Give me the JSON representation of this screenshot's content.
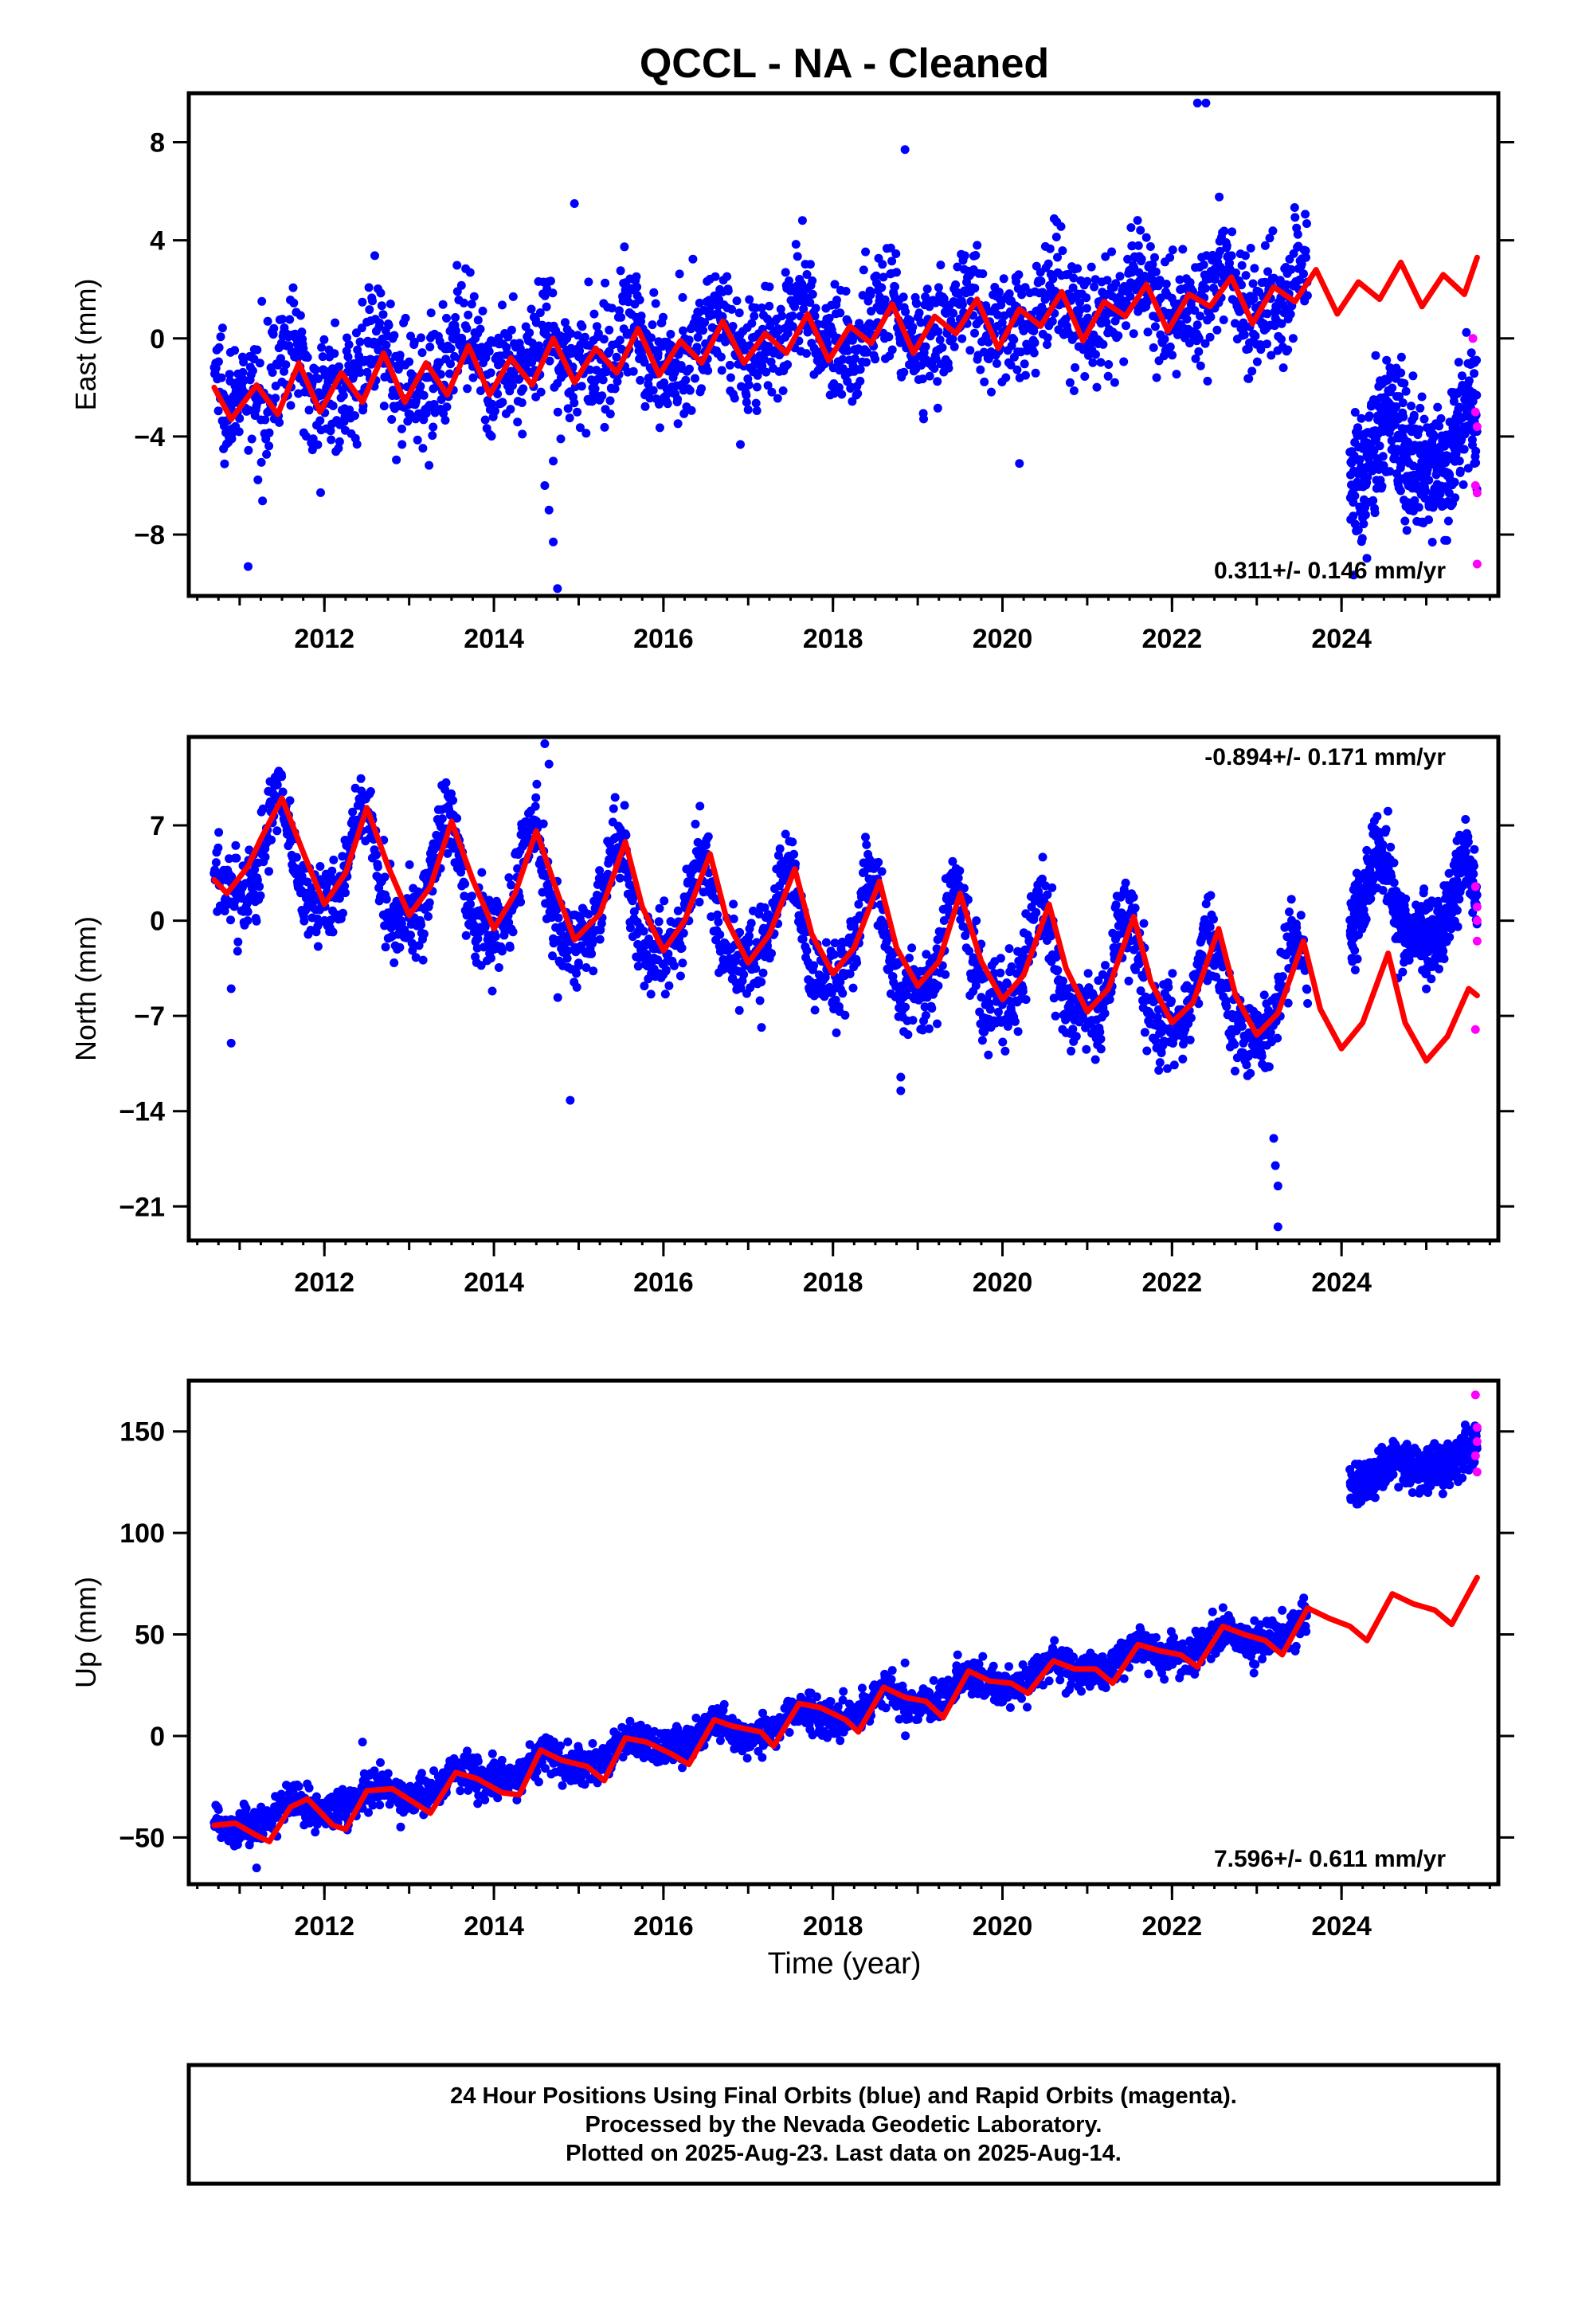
{
  "title": "QCCL  - NA - Cleaned",
  "colors": {
    "final_orbits": "#0000ff",
    "rapid_orbits": "#ff00ff",
    "model": "#ff0000",
    "frame": "#000000"
  },
  "x_axis_label": "Time (year)",
  "footer": {
    "line1": "24 Hour Positions Using Final Orbits (blue) and Rapid Orbits (magenta).",
    "line2": "Processed by the Nevada Geodetic Laboratory.",
    "line3": "Plotted on 2025-Aug-23. Last data on 2025-Aug-14."
  },
  "chart_data": [
    {
      "type": "scatter",
      "ylabel": "East (mm)",
      "rate_text": "0.311+/- 0.146 mm/yr",
      "xlim": [
        2010.4,
        2025.85
      ],
      "ylim": [
        -10.5,
        10
      ],
      "xticks": [
        2012,
        2014,
        2016,
        2018,
        2020,
        2022,
        2024
      ],
      "yticks": [
        -8,
        -4,
        0,
        4,
        8
      ],
      "yticklabels": [
        "−8",
        "−4",
        "0",
        "4",
        "8"
      ],
      "grid": false,
      "final_orbits": {
        "start": 2010.7,
        "end": 2023.6,
        "offset": -2.0,
        "trend": 0.311,
        "amplitude": 0.9,
        "phase_year": 0.6,
        "noise": 1.2,
        "count": 2200
      },
      "final_orbits_2024": {
        "start": 2024.1,
        "end": 2025.6,
        "offset": -4.8,
        "trend": 0.3,
        "amplitude": 1.3,
        "phase_year": 0.55,
        "noise": 1.3,
        "count": 500
      },
      "rapid_orbits": [
        {
          "x": 2025.55,
          "y": 0.0
        },
        {
          "x": 2025.58,
          "y": -3.0
        },
        {
          "x": 2025.6,
          "y": -3.6
        },
        {
          "x": 2025.58,
          "y": -6.0
        },
        {
          "x": 2025.6,
          "y": -6.3
        },
        {
          "x": 2025.6,
          "y": -9.2
        }
      ],
      "outliers": [
        {
          "x": 2011.1,
          "y": -9.3
        },
        {
          "x": 2014.6,
          "y": -6.0
        },
        {
          "x": 2014.65,
          "y": -7.0
        },
        {
          "x": 2014.7,
          "y": -8.3
        },
        {
          "x": 2014.75,
          "y": -10.2
        },
        {
          "x": 2014.7,
          "y": -5.0
        },
        {
          "x": 2018.85,
          "y": 7.7
        },
        {
          "x": 2020.2,
          "y": -5.1
        },
        {
          "x": 2022.3,
          "y": 9.6
        },
        {
          "x": 2022.4,
          "y": 9.6
        },
        {
          "x": 2014.95,
          "y": 5.5
        }
      ],
      "model": [
        [
          2010.7,
          -2.0
        ],
        [
          2010.9,
          -3.3
        ],
        [
          2011.2,
          -1.9
        ],
        [
          2011.45,
          -3.1
        ],
        [
          2011.7,
          -1.0
        ],
        [
          2011.95,
          -3.0
        ],
        [
          2012.2,
          -1.4
        ],
        [
          2012.45,
          -2.6
        ],
        [
          2012.7,
          -0.6
        ],
        [
          2012.95,
          -2.6
        ],
        [
          2013.2,
          -1.0
        ],
        [
          2013.45,
          -2.3
        ],
        [
          2013.7,
          -0.3
        ],
        [
          2013.95,
          -2.3
        ],
        [
          2014.2,
          -0.8
        ],
        [
          2014.45,
          -1.9
        ],
        [
          2014.7,
          0.0
        ],
        [
          2014.95,
          -1.8
        ],
        [
          2015.2,
          -0.4
        ],
        [
          2015.45,
          -1.4
        ],
        [
          2015.7,
          0.4
        ],
        [
          2015.95,
          -1.5
        ],
        [
          2016.2,
          -0.1
        ],
        [
          2016.45,
          -1.0
        ],
        [
          2016.7,
          0.7
        ],
        [
          2016.95,
          -1.0
        ],
        [
          2017.2,
          0.2
        ],
        [
          2017.45,
          -0.6
        ],
        [
          2017.7,
          1.0
        ],
        [
          2017.95,
          -0.9
        ],
        [
          2018.2,
          0.5
        ],
        [
          2018.45,
          -0.2
        ],
        [
          2018.7,
          1.4
        ],
        [
          2018.95,
          -0.6
        ],
        [
          2019.2,
          0.9
        ],
        [
          2019.45,
          0.2
        ],
        [
          2019.7,
          1.6
        ],
        [
          2019.95,
          -0.4
        ],
        [
          2020.2,
          1.2
        ],
        [
          2020.45,
          0.5
        ],
        [
          2020.7,
          1.9
        ],
        [
          2020.95,
          -0.1
        ],
        [
          2021.2,
          1.5
        ],
        [
          2021.45,
          0.9
        ],
        [
          2021.7,
          2.2
        ],
        [
          2021.95,
          0.3
        ],
        [
          2022.2,
          1.8
        ],
        [
          2022.45,
          1.3
        ],
        [
          2022.7,
          2.5
        ],
        [
          2022.95,
          0.6
        ],
        [
          2023.2,
          2.1
        ],
        [
          2023.45,
          1.5
        ],
        [
          2023.7,
          2.8
        ],
        [
          2023.95,
          1.0
        ],
        [
          2024.2,
          2.3
        ],
        [
          2024.45,
          1.6
        ],
        [
          2024.7,
          3.1
        ],
        [
          2024.95,
          1.3
        ],
        [
          2025.2,
          2.6
        ],
        [
          2025.45,
          1.8
        ],
        [
          2025.6,
          3.3
        ]
      ]
    },
    {
      "type": "scatter",
      "ylabel": "North (mm)",
      "rate_text": "-0.894+/- 0.171 mm/yr",
      "xlim": [
        2010.4,
        2025.85
      ],
      "ylim": [
        -23.5,
        13.5
      ],
      "xticks": [
        2012,
        2014,
        2016,
        2018,
        2020,
        2022,
        2024
      ],
      "yticks": [
        -21,
        -14,
        -7,
        0,
        7
      ],
      "yticklabels": [
        "−21",
        "−14",
        "−7",
        "0",
        "7"
      ],
      "grid": false,
      "final_orbits": {
        "start": 2010.7,
        "end": 2023.6,
        "offset": 5.0,
        "trend": -0.894,
        "amplitude": 3.8,
        "phase_year": 0.45,
        "noise": 1.5,
        "count": 2200
      },
      "final_orbits_2024": {
        "start": 2024.1,
        "end": 2025.6,
        "offset": 1.5,
        "trend": -0.9,
        "amplitude": 3.0,
        "phase_year": 0.45,
        "noise": 1.4,
        "count": 500
      },
      "rapid_orbits": [
        {
          "x": 2025.58,
          "y": 2.5
        },
        {
          "x": 2025.6,
          "y": 1.0
        },
        {
          "x": 2025.6,
          "y": 0.0
        },
        {
          "x": 2025.6,
          "y": -1.5
        },
        {
          "x": 2025.58,
          "y": -8.0
        }
      ],
      "outliers": [
        {
          "x": 2010.9,
          "y": -5.0
        },
        {
          "x": 2010.9,
          "y": -9.0
        },
        {
          "x": 2014.9,
          "y": -13.2
        },
        {
          "x": 2014.6,
          "y": 13.0
        },
        {
          "x": 2014.65,
          "y": 11.5
        },
        {
          "x": 2018.8,
          "y": -11.5
        },
        {
          "x": 2018.8,
          "y": -12.5
        },
        {
          "x": 2023.2,
          "y": -16.0
        },
        {
          "x": 2023.22,
          "y": -18.0
        },
        {
          "x": 2023.25,
          "y": -19.5
        },
        {
          "x": 2023.25,
          "y": -22.5
        }
      ],
      "model": [
        [
          2010.7,
          3.0
        ],
        [
          2010.85,
          2.0
        ],
        [
          2011.1,
          4.0
        ],
        [
          2011.25,
          6.0
        ],
        [
          2011.5,
          9.0
        ],
        [
          2011.75,
          5.0
        ],
        [
          2012.0,
          1.2
        ],
        [
          2012.25,
          3.5
        ],
        [
          2012.5,
          8.3
        ],
        [
          2012.75,
          4.0
        ],
        [
          2013.0,
          0.4
        ],
        [
          2013.25,
          2.5
        ],
        [
          2013.5,
          7.3
        ],
        [
          2013.75,
          3.0
        ],
        [
          2014.0,
          -0.6
        ],
        [
          2014.25,
          2.0
        ],
        [
          2014.5,
          6.6
        ],
        [
          2014.75,
          2.0
        ],
        [
          2014.95,
          -1.4
        ],
        [
          2015.25,
          0.5
        ],
        [
          2015.55,
          5.8
        ],
        [
          2015.75,
          1.0
        ],
        [
          2016.0,
          -2.2
        ],
        [
          2016.25,
          0.0
        ],
        [
          2016.55,
          4.9
        ],
        [
          2016.75,
          0.0
        ],
        [
          2017.0,
          -3.1
        ],
        [
          2017.25,
          -1.0
        ],
        [
          2017.55,
          3.8
        ],
        [
          2017.75,
          -1.0
        ],
        [
          2018.0,
          -3.9
        ],
        [
          2018.25,
          -2.0
        ],
        [
          2018.55,
          2.9
        ],
        [
          2018.75,
          -2.0
        ],
        [
          2019.0,
          -4.8
        ],
        [
          2019.25,
          -3.0
        ],
        [
          2019.5,
          2.0
        ],
        [
          2019.75,
          -3.0
        ],
        [
          2020.0,
          -5.8
        ],
        [
          2020.25,
          -4.0
        ],
        [
          2020.55,
          1.2
        ],
        [
          2020.75,
          -3.5
        ],
        [
          2021.0,
          -6.7
        ],
        [
          2021.25,
          -5.0
        ],
        [
          2021.55,
          0.3
        ],
        [
          2021.75,
          -4.5
        ],
        [
          2022.0,
          -7.5
        ],
        [
          2022.25,
          -6.0
        ],
        [
          2022.55,
          -0.6
        ],
        [
          2022.75,
          -5.5
        ],
        [
          2023.0,
          -8.4
        ],
        [
          2023.25,
          -6.8
        ],
        [
          2023.55,
          -1.5
        ],
        [
          2023.75,
          -6.5
        ],
        [
          2024.0,
          -9.4
        ],
        [
          2024.25,
          -7.5
        ],
        [
          2024.55,
          -2.4
        ],
        [
          2024.75,
          -7.5
        ],
        [
          2025.0,
          -10.3
        ],
        [
          2025.25,
          -8.5
        ],
        [
          2025.5,
          -5.0
        ],
        [
          2025.6,
          -5.5
        ]
      ]
    },
    {
      "type": "scatter",
      "ylabel": "Up (mm)",
      "rate_text": "7.596+/- 0.611 mm/yr",
      "xlim": [
        2010.4,
        2025.85
      ],
      "ylim": [
        -73,
        175
      ],
      "xticks": [
        2012,
        2014,
        2016,
        2018,
        2020,
        2022,
        2024
      ],
      "yticks": [
        -50,
        0,
        50,
        100,
        150
      ],
      "yticklabels": [
        "−50",
        "0",
        "50",
        "100",
        "150"
      ],
      "grid": false,
      "final_orbits": {
        "start": 2010.7,
        "end": 2023.6,
        "offset": -44.0,
        "trend": 7.6,
        "amplitude": 4.5,
        "phase_year": 0.6,
        "noise": 4.5,
        "count": 2200
      },
      "final_orbits_2024": {
        "start": 2024.1,
        "end": 2025.6,
        "offset": 125.0,
        "trend": 10.0,
        "amplitude": 4.0,
        "phase_year": 0.6,
        "noise": 5.0,
        "count": 500
      },
      "rapid_orbits": [
        {
          "x": 2025.58,
          "y": 168
        },
        {
          "x": 2025.6,
          "y": 152
        },
        {
          "x": 2025.6,
          "y": 145
        },
        {
          "x": 2025.58,
          "y": 138
        },
        {
          "x": 2025.6,
          "y": 130
        }
      ],
      "outliers": [
        {
          "x": 2012.45,
          "y": -3
        },
        {
          "x": 2018.85,
          "y": 36
        },
        {
          "x": 2011.2,
          "y": -65
        }
      ],
      "model": [
        [
          2010.7,
          -44
        ],
        [
          2010.95,
          -43
        ],
        [
          2011.2,
          -49
        ],
        [
          2011.35,
          -52
        ],
        [
          2011.6,
          -35
        ],
        [
          2011.8,
          -31
        ],
        [
          2012.1,
          -44
        ],
        [
          2012.25,
          -46
        ],
        [
          2012.5,
          -27
        ],
        [
          2012.8,
          -26
        ],
        [
          2013.1,
          -34
        ],
        [
          2013.25,
          -38
        ],
        [
          2013.55,
          -18
        ],
        [
          2013.8,
          -21
        ],
        [
          2014.1,
          -28
        ],
        [
          2014.3,
          -29
        ],
        [
          2014.55,
          -7
        ],
        [
          2014.8,
          -12
        ],
        [
          2015.1,
          -15
        ],
        [
          2015.3,
          -22
        ],
        [
          2015.55,
          -1
        ],
        [
          2015.8,
          -3
        ],
        [
          2016.1,
          -9
        ],
        [
          2016.3,
          -14
        ],
        [
          2016.6,
          8
        ],
        [
          2016.8,
          5
        ],
        [
          2017.15,
          2
        ],
        [
          2017.3,
          -5
        ],
        [
          2017.6,
          16
        ],
        [
          2017.85,
          14
        ],
        [
          2018.15,
          8
        ],
        [
          2018.3,
          2
        ],
        [
          2018.6,
          24
        ],
        [
          2018.85,
          19
        ],
        [
          2019.1,
          17
        ],
        [
          2019.3,
          9
        ],
        [
          2019.6,
          32
        ],
        [
          2019.85,
          27
        ],
        [
          2020.1,
          26
        ],
        [
          2020.3,
          21
        ],
        [
          2020.6,
          37
        ],
        [
          2020.85,
          33
        ],
        [
          2021.1,
          33
        ],
        [
          2021.3,
          26
        ],
        [
          2021.6,
          45
        ],
        [
          2021.85,
          42
        ],
        [
          2022.1,
          40
        ],
        [
          2022.3,
          34
        ],
        [
          2022.6,
          54
        ],
        [
          2022.85,
          50
        ],
        [
          2023.1,
          47
        ],
        [
          2023.3,
          40
        ],
        [
          2023.6,
          63
        ],
        [
          2023.85,
          58
        ],
        [
          2024.1,
          54
        ],
        [
          2024.3,
          47
        ],
        [
          2024.6,
          70
        ],
        [
          2024.85,
          65
        ],
        [
          2025.1,
          62
        ],
        [
          2025.3,
          55
        ],
        [
          2025.6,
          78
        ]
      ]
    }
  ]
}
